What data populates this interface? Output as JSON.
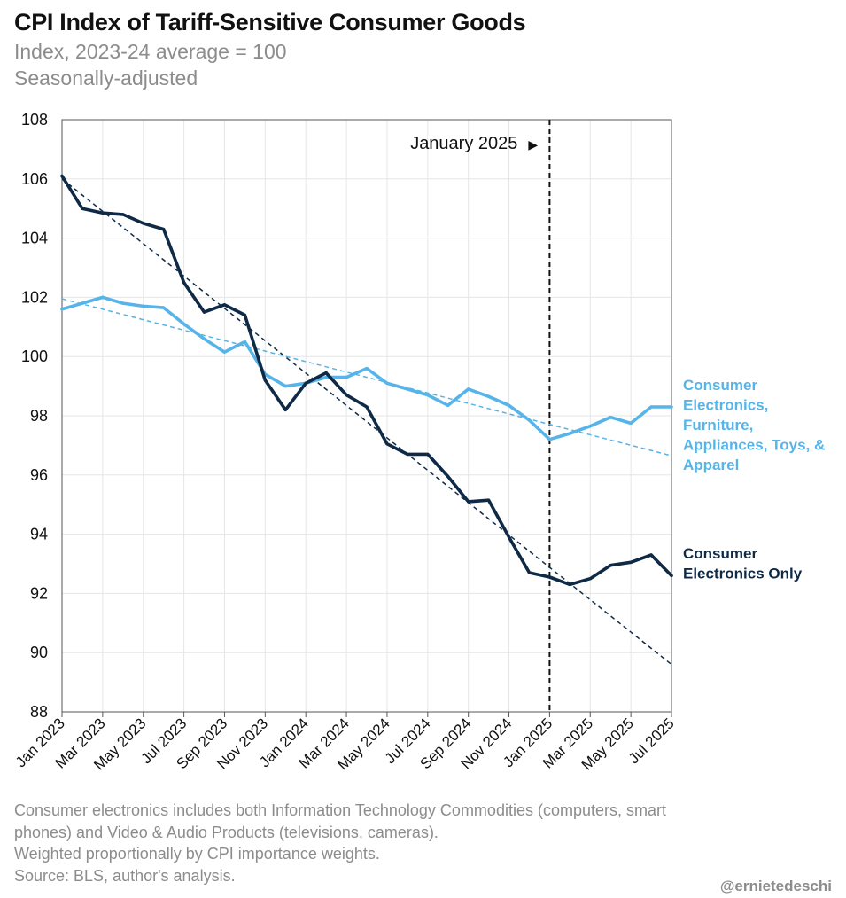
{
  "title": "CPI Index of Tariff-Sensitive Consumer Goods",
  "subtitle_1": "Index, 2023-24 average = 100",
  "subtitle_2": "Seasonally-adjusted",
  "footnote": [
    "Consumer electronics includes both Information Technology Commodities (computers, smart",
    "phones) and Video & Audio Products (televisions, cameras).",
    "Weighted proportionally by CPI importance weights.",
    "Source: BLS, author's analysis."
  ],
  "handle": "@ernietedeschi",
  "colors": {
    "broad": "#56b4e9",
    "electronics": "#0e2a47",
    "grid": "#e6e6e6",
    "axis": "#555555"
  },
  "chart_data": {
    "type": "line",
    "title": "CPI Index of Tariff-Sensitive Consumer Goods",
    "ylim": [
      88,
      108
    ],
    "yticks": [
      88,
      90,
      92,
      94,
      96,
      98,
      100,
      102,
      104,
      106,
      108
    ],
    "x": [
      "Jan 2023",
      "Feb 2023",
      "Mar 2023",
      "Apr 2023",
      "May 2023",
      "Jun 2023",
      "Jul 2023",
      "Aug 2023",
      "Sep 2023",
      "Oct 2023",
      "Nov 2023",
      "Dec 2023",
      "Jan 2024",
      "Feb 2024",
      "Mar 2024",
      "Apr 2024",
      "May 2024",
      "Jun 2024",
      "Jul 2024",
      "Aug 2024",
      "Sep 2024",
      "Oct 2024",
      "Nov 2024",
      "Dec 2024",
      "Jan 2025",
      "Feb 2025",
      "Mar 2025",
      "Apr 2025",
      "May 2025",
      "Jun 2025",
      "Jul 2025"
    ],
    "xtick_labels": [
      "Jan 2023",
      "Mar 2023",
      "May 2023",
      "Jul 2023",
      "Sep 2023",
      "Nov 2023",
      "Jan 2024",
      "Mar 2024",
      "May 2024",
      "Jul 2024",
      "Sep 2024",
      "Nov 2024",
      "Jan 2025",
      "Mar 2025",
      "May 2025",
      "Jul 2025"
    ],
    "grid": true,
    "series": [
      {
        "name": "Consumer Electronics, Furniture, Appliances, Toys, & Apparel",
        "label_lines": [
          "Consumer",
          "Electronics,",
          "Furniture,",
          "Appliances, Toys, &",
          "Apparel"
        ],
        "values": [
          101.6,
          101.8,
          102.0,
          101.8,
          101.7,
          101.65,
          101.1,
          100.6,
          100.15,
          100.5,
          99.4,
          99.0,
          99.1,
          99.3,
          99.3,
          99.6,
          99.1,
          98.9,
          98.7,
          98.35,
          98.9,
          98.65,
          98.35,
          97.85,
          97.2,
          97.4,
          97.65,
          97.95,
          97.75,
          98.3,
          98.3
        ],
        "trend": [
          101.95,
          96.65
        ]
      },
      {
        "name": "Consumer Electronics Only",
        "label_lines": [
          "Consumer",
          "Electronics Only"
        ],
        "values": [
          106.1,
          105.0,
          104.85,
          104.8,
          104.5,
          104.3,
          102.5,
          101.5,
          101.75,
          101.4,
          99.2,
          98.2,
          99.1,
          99.45,
          98.7,
          98.3,
          97.05,
          96.7,
          96.7,
          95.95,
          95.1,
          95.15,
          93.9,
          92.7,
          92.55,
          92.3,
          92.5,
          92.95,
          93.05,
          93.3,
          92.6
        ],
        "trend": [
          106.0,
          89.6
        ]
      }
    ],
    "annotation": {
      "text": "January 2025",
      "marker": "▶",
      "x": "Jan 2025"
    }
  }
}
